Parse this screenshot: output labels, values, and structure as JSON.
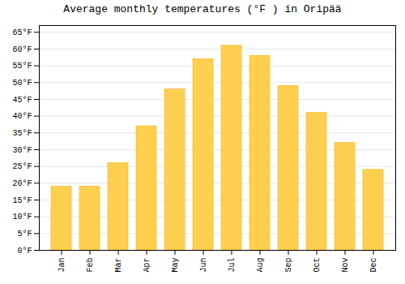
{
  "chart_data": {
    "type": "bar",
    "title": "Average monthly temperatures (°F ) in Oripää",
    "categories": [
      "Jan",
      "Feb",
      "Mar",
      "Apr",
      "May",
      "Jun",
      "Jul",
      "Aug",
      "Sep",
      "Oct",
      "Nov",
      "Dec"
    ],
    "values": [
      19,
      19,
      26,
      37,
      48,
      57,
      61,
      58,
      49,
      41,
      32,
      24
    ],
    "color": "#FFD050",
    "ylim": [
      0,
      67
    ],
    "yticks": [
      {
        "value": 0,
        "label": "0°F"
      },
      {
        "value": 5,
        "label": "5°F"
      },
      {
        "value": 10,
        "label": "10°F"
      },
      {
        "value": 15,
        "label": "15°F"
      },
      {
        "value": 20,
        "label": "20°F"
      },
      {
        "value": 25,
        "label": "25°F"
      },
      {
        "value": 30,
        "label": "30°F"
      },
      {
        "value": 35,
        "label": "35°F"
      },
      {
        "value": 40,
        "label": "40°F"
      },
      {
        "value": 45,
        "label": "45°F"
      },
      {
        "value": 50,
        "label": "50°F"
      },
      {
        "value": 55,
        "label": "55°F"
      },
      {
        "value": 60,
        "label": "60°F"
      },
      {
        "value": 65,
        "label": "65°F"
      }
    ],
    "grid": true
  }
}
